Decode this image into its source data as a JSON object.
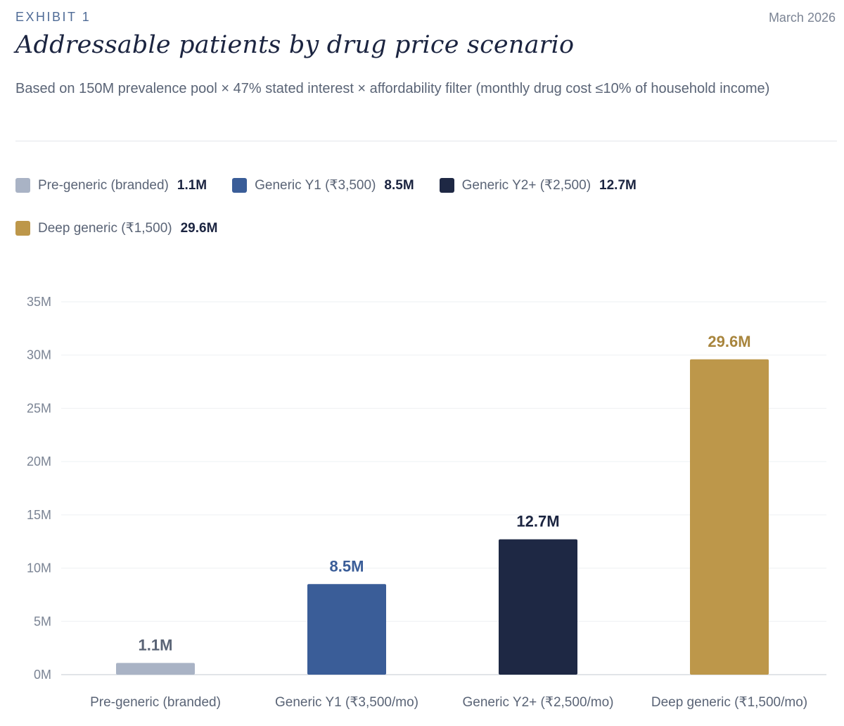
{
  "header": {
    "exhibit": "EXHIBIT 1",
    "date": "March 2026",
    "title": "Addressable patients by drug price scenario",
    "subtitle": "Based on 150M prevalence pool × 47% stated interest × affordability filter (monthly drug cost ≤10% of household income)"
  },
  "legend": [
    {
      "label": "Pre-generic (branded)",
      "value": "1.1M",
      "color": "#a9b3c5"
    },
    {
      "label": "Generic Y1 (₹3,500)",
      "value": "8.5M",
      "color": "#3a5d98"
    },
    {
      "label": "Generic Y2+ (₹2,500)",
      "value": "12.7M",
      "color": "#1e2844"
    },
    {
      "label": "Deep generic (₹1,500)",
      "value": "29.6M",
      "color": "#bd974a"
    }
  ],
  "chart_data": {
    "type": "bar",
    "title": "Addressable patients by drug price scenario",
    "xlabel": "",
    "ylabel": "",
    "unit": "M",
    "ylim": [
      0,
      35
    ],
    "yticks": [
      0,
      5,
      10,
      15,
      20,
      25,
      30,
      35
    ],
    "ytick_labels": [
      "0M",
      "5M",
      "10M",
      "15M",
      "20M",
      "25M",
      "30M",
      "35M"
    ],
    "grid": true,
    "categories": [
      "Pre-generic (branded)",
      "Generic Y1 (₹3,500/mo)",
      "Generic Y2+ (₹2,500/mo)",
      "Deep generic (₹1,500/mo)"
    ],
    "values": [
      1.1,
      8.5,
      12.7,
      29.6
    ],
    "data_labels": [
      "1.1M",
      "8.5M",
      "12.7M",
      "29.6M"
    ],
    "colors": [
      "#a9b3c5",
      "#3a5d98",
      "#1e2844",
      "#bd974a"
    ],
    "label_colors": [
      "#5a6476",
      "#3a5d98",
      "#1b2440",
      "#a8853d"
    ]
  }
}
